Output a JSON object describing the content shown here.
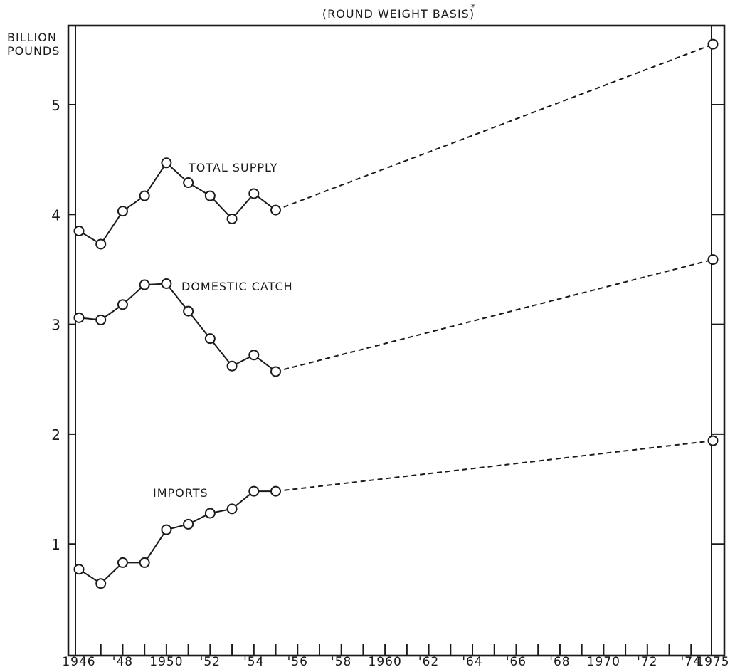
{
  "chart_data": {
    "type": "line",
    "title": "(ROUND WEIGHT BASIS)",
    "title_mark": "*",
    "ylabel_lines": [
      "BILLION",
      "POUNDS"
    ],
    "xlabel": "",
    "xlim": [
      1946,
      1975
    ],
    "ylim": [
      0,
      5.5
    ],
    "y_ticks": [
      1,
      2,
      3,
      4,
      5
    ],
    "y_tick_labels": [
      "1",
      "2",
      "3",
      "4",
      "5"
    ],
    "x_ticks": [
      1946,
      1947,
      1948,
      1949,
      1950,
      1951,
      1952,
      1953,
      1954,
      1955,
      1956,
      1957,
      1958,
      1959,
      1960,
      1961,
      1962,
      1963,
      1964,
      1965,
      1966,
      1967,
      1968,
      1969,
      1970,
      1971,
      1972,
      1973,
      1974,
      1975
    ],
    "x_tick_labels": [
      {
        "x": 1946,
        "label": "1946"
      },
      {
        "x": 1948,
        "label": "'48"
      },
      {
        "x": 1950,
        "label": "1950"
      },
      {
        "x": 1952,
        "label": "'52"
      },
      {
        "x": 1954,
        "label": "'54"
      },
      {
        "x": 1956,
        "label": "'56"
      },
      {
        "x": 1958,
        "label": "'58"
      },
      {
        "x": 1960,
        "label": "1960"
      },
      {
        "x": 1962,
        "label": "'62"
      },
      {
        "x": 1964,
        "label": "'64"
      },
      {
        "x": 1966,
        "label": "'66"
      },
      {
        "x": 1968,
        "label": "'68"
      },
      {
        "x": 1970,
        "label": "1970"
      },
      {
        "x": 1972,
        "label": "'72"
      },
      {
        "x": 1974,
        "label": "'74"
      },
      {
        "x": 1975,
        "label": "1975"
      }
    ],
    "grid": false,
    "series": [
      {
        "name": "TOTAL SUPPLY",
        "x": [
          1946,
          1947,
          1948,
          1949,
          1950,
          1951,
          1952,
          1953,
          1954,
          1955
        ],
        "values": [
          3.85,
          3.73,
          4.03,
          4.17,
          4.47,
          4.29,
          4.17,
          3.96,
          4.19,
          4.04
        ],
        "projection": {
          "x": [
            1955,
            1975
          ],
          "values": [
            4.04,
            5.55
          ]
        }
      },
      {
        "name": "DOMESTIC CATCH",
        "x": [
          1946,
          1947,
          1948,
          1949,
          1950,
          1951,
          1952,
          1953,
          1954,
          1955
        ],
        "values": [
          3.06,
          3.04,
          3.18,
          3.36,
          3.37,
          3.12,
          2.87,
          2.62,
          2.72,
          2.57
        ],
        "projection": {
          "x": [
            1955,
            1975
          ],
          "values": [
            2.57,
            3.59
          ]
        }
      },
      {
        "name": "IMPORTS",
        "x": [
          1946,
          1947,
          1948,
          1949,
          1950,
          1951,
          1952,
          1953,
          1954,
          1955
        ],
        "values": [
          0.77,
          0.64,
          0.83,
          0.83,
          1.13,
          1.18,
          1.28,
          1.32,
          1.48,
          1.48
        ],
        "projection": {
          "x": [
            1955,
            1975
          ],
          "values": [
            1.48,
            1.94
          ]
        }
      }
    ]
  }
}
